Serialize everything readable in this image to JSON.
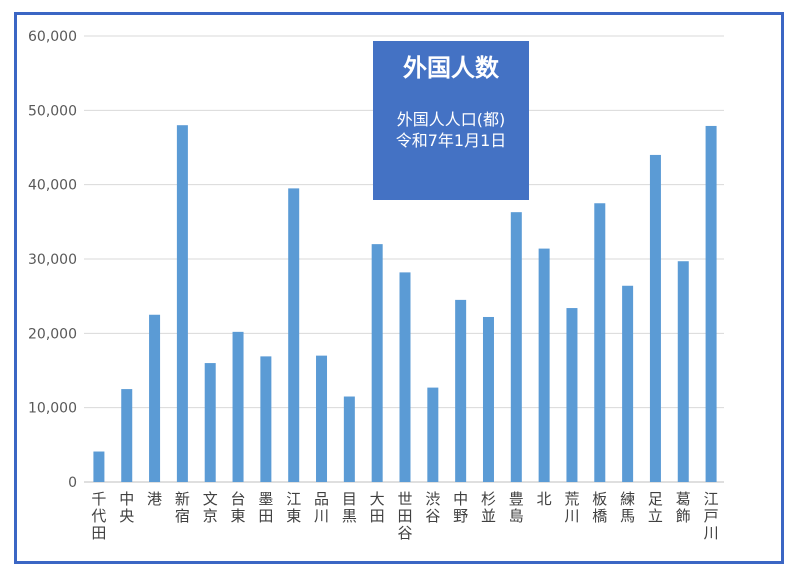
{
  "chart_data": {
    "type": "bar",
    "title": "外国人数",
    "subtitle": [
      "外国人人口(都)",
      "令和7年1月1日"
    ],
    "categories": [
      "千代田",
      "中央",
      "港",
      "新宿",
      "文京",
      "台東",
      "墨田",
      "江東",
      "品川",
      "目黒",
      "大田",
      "世田谷",
      "渋谷",
      "中野",
      "杉並",
      "豊島",
      "北",
      "荒川",
      "板橋",
      "練馬",
      "足立",
      "葛飾",
      "江戸川"
    ],
    "values": [
      4100,
      12500,
      22500,
      48000,
      16000,
      20200,
      16900,
      39500,
      17000,
      11500,
      32000,
      28200,
      12700,
      24500,
      22200,
      36300,
      31400,
      23400,
      37500,
      26400,
      44000,
      29700,
      47900
    ],
    "y_ticks": [
      "0",
      "10,000",
      "20,000",
      "30,000",
      "40,000",
      "50,000",
      "60,000"
    ],
    "ylim": [
      0,
      60000
    ],
    "grid": true,
    "legend": "none",
    "bar_color": "#5b9bd5",
    "grid_color": "#d9d9d9",
    "title_box_color": "#4472c4",
    "frame_color": "#3b66c4"
  }
}
